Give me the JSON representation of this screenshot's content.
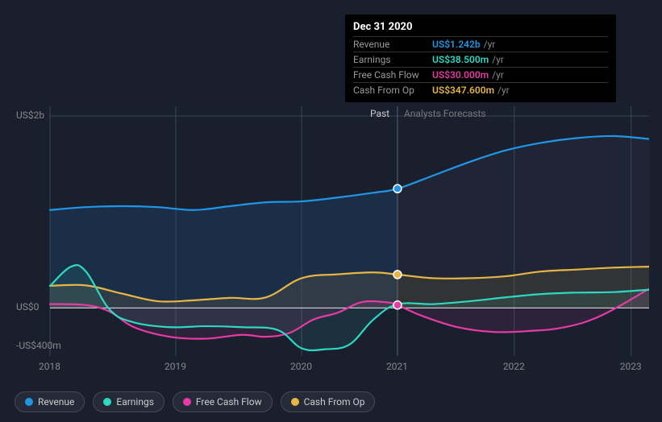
{
  "tooltip": {
    "date": "Dec 31 2020",
    "rows": [
      {
        "label": "Revenue",
        "value": "US$1.242b",
        "unit": "/yr",
        "color": "#2196e6"
      },
      {
        "label": "Earnings",
        "value": "US$38.500m",
        "unit": "/yr",
        "color": "#2dd9c3"
      },
      {
        "label": "Free Cash Flow",
        "value": "US$30.000m",
        "unit": "/yr",
        "color": "#e63ba5"
      },
      {
        "label": "Cash From Op",
        "value": "US$347.600m",
        "unit": "/yr",
        "color": "#e6b545"
      }
    ]
  },
  "yTicks": [
    {
      "label": "US$2b",
      "v": 2000
    },
    {
      "label": "US$0",
      "v": 0
    },
    {
      "label": "-US$400m",
      "v": -400
    }
  ],
  "xTicks": [
    {
      "label": "2018",
      "x": 0.0
    },
    {
      "label": "2019",
      "x": 0.21
    },
    {
      "label": "2020",
      "x": 0.42
    },
    {
      "label": "2021",
      "x": 0.58
    },
    {
      "label": "2022",
      "x": 0.775
    },
    {
      "label": "2023",
      "x": 0.97
    }
  ],
  "periods": {
    "past": "Past",
    "forecast": "Analysts Forecasts"
  },
  "dividerX": 0.58,
  "colors": {
    "revenue": "#2196e6",
    "earnings": "#2dd9c3",
    "fcf": "#e63ba5",
    "cfo": "#e6b545",
    "bg": "#1a1f2e",
    "grid": "#3a4555",
    "pastFill": "#1e3a5c",
    "forecastFill": "#232938"
  },
  "legend": [
    "Revenue",
    "Earnings",
    "Free Cash Flow",
    "Cash From Op"
  ],
  "yRange": {
    "min": -500,
    "max": 2100
  },
  "series": {
    "revenue": [
      {
        "x": 0.0,
        "y": 1020
      },
      {
        "x": 0.06,
        "y": 1050
      },
      {
        "x": 0.12,
        "y": 1060
      },
      {
        "x": 0.18,
        "y": 1050
      },
      {
        "x": 0.24,
        "y": 1020
      },
      {
        "x": 0.3,
        "y": 1060
      },
      {
        "x": 0.36,
        "y": 1100
      },
      {
        "x": 0.42,
        "y": 1110
      },
      {
        "x": 0.48,
        "y": 1150
      },
      {
        "x": 0.54,
        "y": 1200
      },
      {
        "x": 0.58,
        "y": 1242
      },
      {
        "x": 0.64,
        "y": 1380
      },
      {
        "x": 0.7,
        "y": 1520
      },
      {
        "x": 0.76,
        "y": 1640
      },
      {
        "x": 0.82,
        "y": 1720
      },
      {
        "x": 0.88,
        "y": 1770
      },
      {
        "x": 0.94,
        "y": 1790
      },
      {
        "x": 1.0,
        "y": 1760
      }
    ],
    "earnings": [
      {
        "x": 0.0,
        "y": 230
      },
      {
        "x": 0.035,
        "y": 430
      },
      {
        "x": 0.06,
        "y": 380
      },
      {
        "x": 0.1,
        "y": -20
      },
      {
        "x": 0.14,
        "y": -150
      },
      {
        "x": 0.2,
        "y": -200
      },
      {
        "x": 0.26,
        "y": -190
      },
      {
        "x": 0.32,
        "y": -200
      },
      {
        "x": 0.38,
        "y": -230
      },
      {
        "x": 0.42,
        "y": -420
      },
      {
        "x": 0.46,
        "y": -430
      },
      {
        "x": 0.5,
        "y": -380
      },
      {
        "x": 0.54,
        "y": -120
      },
      {
        "x": 0.58,
        "y": 38
      },
      {
        "x": 0.64,
        "y": 40
      },
      {
        "x": 0.7,
        "y": 70
      },
      {
        "x": 0.76,
        "y": 110
      },
      {
        "x": 0.82,
        "y": 145
      },
      {
        "x": 0.88,
        "y": 160
      },
      {
        "x": 0.94,
        "y": 165
      },
      {
        "x": 1.0,
        "y": 190
      }
    ],
    "fcf": [
      {
        "x": 0.0,
        "y": 40
      },
      {
        "x": 0.06,
        "y": 30
      },
      {
        "x": 0.1,
        "y": -40
      },
      {
        "x": 0.14,
        "y": -200
      },
      {
        "x": 0.2,
        "y": -300
      },
      {
        "x": 0.26,
        "y": -320
      },
      {
        "x": 0.32,
        "y": -280
      },
      {
        "x": 0.36,
        "y": -300
      },
      {
        "x": 0.4,
        "y": -260
      },
      {
        "x": 0.44,
        "y": -120
      },
      {
        "x": 0.48,
        "y": -50
      },
      {
        "x": 0.52,
        "y": 60
      },
      {
        "x": 0.56,
        "y": 60
      },
      {
        "x": 0.58,
        "y": 30
      },
      {
        "x": 0.62,
        "y": -80
      },
      {
        "x": 0.68,
        "y": -200
      },
      {
        "x": 0.74,
        "y": -250
      },
      {
        "x": 0.8,
        "y": -240
      },
      {
        "x": 0.86,
        "y": -200
      },
      {
        "x": 0.92,
        "y": -80
      },
      {
        "x": 1.0,
        "y": 200
      }
    ],
    "cfo": [
      {
        "x": 0.0,
        "y": 230
      },
      {
        "x": 0.06,
        "y": 235
      },
      {
        "x": 0.12,
        "y": 150
      },
      {
        "x": 0.18,
        "y": 70
      },
      {
        "x": 0.24,
        "y": 80
      },
      {
        "x": 0.3,
        "y": 105
      },
      {
        "x": 0.36,
        "y": 110
      },
      {
        "x": 0.42,
        "y": 310
      },
      {
        "x": 0.48,
        "y": 350
      },
      {
        "x": 0.54,
        "y": 370
      },
      {
        "x": 0.58,
        "y": 348
      },
      {
        "x": 0.64,
        "y": 310
      },
      {
        "x": 0.7,
        "y": 310
      },
      {
        "x": 0.76,
        "y": 330
      },
      {
        "x": 0.82,
        "y": 380
      },
      {
        "x": 0.88,
        "y": 400
      },
      {
        "x": 0.94,
        "y": 420
      },
      {
        "x": 1.0,
        "y": 430
      }
    ]
  },
  "markers": [
    {
      "x": 0.58,
      "y": 1242,
      "color": "#2196e6"
    },
    {
      "x": 0.58,
      "y": 348,
      "color": "#e6b545"
    },
    {
      "x": 0.58,
      "y": 30,
      "color": "#e63ba5"
    }
  ]
}
